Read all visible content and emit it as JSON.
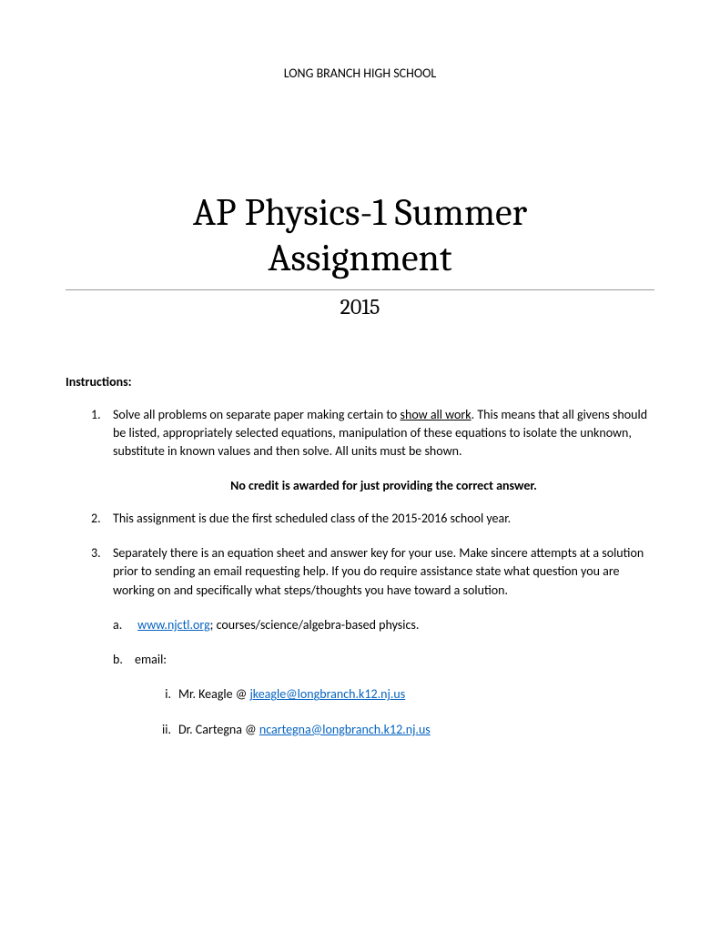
{
  "header": "LONG BRANCH HIGH SCHOOL",
  "title_line1": "AP Physics-1 Summer",
  "title_line2": "Assignment",
  "year": "2015",
  "instructions_label": "Instructions:",
  "items": {
    "1": {
      "number": "1.",
      "text_start": "Solve all problems on separate paper making certain to ",
      "underlined": "show all work",
      "text_end": ". This means that all givens should be listed, appropriately selected equations, manipulation of these equations to isolate the unknown, substitute in known values and then solve. All units must be shown."
    },
    "bold_note": "No credit is awarded for just providing the correct answer.",
    "2": {
      "number": "2.",
      "text": "This assignment is due the first scheduled class of the 2015-2016 school year."
    },
    "3": {
      "number": "3.",
      "text": "Separately there is an equation sheet and answer key for your use. Make sincere attempts at a solution prior to sending an email requesting help. If you do require assistance state what question you are working on and specifically what steps/thoughts you have toward a solution."
    },
    "a": {
      "letter": "a.",
      "link": "www.njctl.org",
      "text_after": "; courses/science/algebra-based physics."
    },
    "b": {
      "letter": "b.",
      "text": "email:"
    },
    "i": {
      "roman": "i.",
      "text_before": "Mr. Keagle @ ",
      "link": "jkeagle@longbranch.k12.nj.us"
    },
    "ii": {
      "roman": "ii.",
      "text_before": "Dr. Cartegna @ ",
      "link": "ncartegna@longbranch.k12.nj.us"
    }
  }
}
